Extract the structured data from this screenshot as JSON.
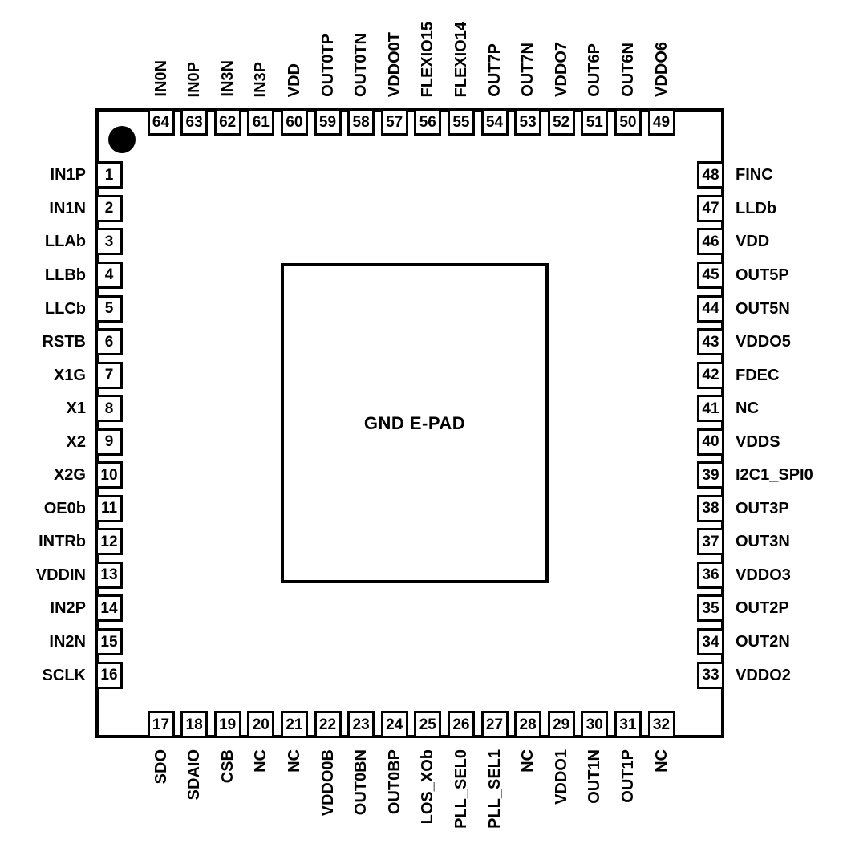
{
  "diagram": {
    "type": "ic-pinout",
    "package": "64-pin quad flat package",
    "epad_label": "GND E-PAD",
    "colors": {
      "line": "#000000",
      "text": "#000000",
      "background": "#ffffff"
    },
    "pins": {
      "top": [
        {
          "num": "64",
          "name": "IN0N"
        },
        {
          "num": "63",
          "name": "IN0P"
        },
        {
          "num": "62",
          "name": "IN3N"
        },
        {
          "num": "61",
          "name": "IN3P"
        },
        {
          "num": "60",
          "name": "VDD"
        },
        {
          "num": "59",
          "name": "OUT0TP"
        },
        {
          "num": "58",
          "name": "OUT0TN"
        },
        {
          "num": "57",
          "name": "VDDO0T"
        },
        {
          "num": "56",
          "name": "FLEXIO15"
        },
        {
          "num": "55",
          "name": "FLEXIO14"
        },
        {
          "num": "54",
          "name": "OUT7P"
        },
        {
          "num": "53",
          "name": "OUT7N"
        },
        {
          "num": "52",
          "name": "VDDO7"
        },
        {
          "num": "51",
          "name": "OUT6P"
        },
        {
          "num": "50",
          "name": "OUT6N"
        },
        {
          "num": "49",
          "name": "VDDO6"
        }
      ],
      "left": [
        {
          "num": "1",
          "name": "IN1P"
        },
        {
          "num": "2",
          "name": "IN1N"
        },
        {
          "num": "3",
          "name": "LLAb"
        },
        {
          "num": "4",
          "name": "LLBb"
        },
        {
          "num": "5",
          "name": "LLCb"
        },
        {
          "num": "6",
          "name": "RSTB"
        },
        {
          "num": "7",
          "name": "X1G"
        },
        {
          "num": "8",
          "name": "X1"
        },
        {
          "num": "9",
          "name": "X2"
        },
        {
          "num": "10",
          "name": "X2G"
        },
        {
          "num": "11",
          "name": "OE0b"
        },
        {
          "num": "12",
          "name": "INTRb"
        },
        {
          "num": "13",
          "name": "VDDIN"
        },
        {
          "num": "14",
          "name": "IN2P"
        },
        {
          "num": "15",
          "name": "IN2N"
        },
        {
          "num": "16",
          "name": "SCLK"
        }
      ],
      "right": [
        {
          "num": "48",
          "name": "FINC"
        },
        {
          "num": "47",
          "name": "LLDb"
        },
        {
          "num": "46",
          "name": "VDD"
        },
        {
          "num": "45",
          "name": "OUT5P"
        },
        {
          "num": "44",
          "name": "OUT5N"
        },
        {
          "num": "43",
          "name": "VDDO5"
        },
        {
          "num": "42",
          "name": "FDEC"
        },
        {
          "num": "41",
          "name": "NC"
        },
        {
          "num": "40",
          "name": "VDDS"
        },
        {
          "num": "39",
          "name": "I2C1_SPI0"
        },
        {
          "num": "38",
          "name": "OUT3P"
        },
        {
          "num": "37",
          "name": "OUT3N"
        },
        {
          "num": "36",
          "name": "VDDO3"
        },
        {
          "num": "35",
          "name": "OUT2P"
        },
        {
          "num": "34",
          "name": "OUT2N"
        },
        {
          "num": "33",
          "name": "VDDO2"
        }
      ],
      "bottom": [
        {
          "num": "17",
          "name": "SDO"
        },
        {
          "num": "18",
          "name": "SDAIO"
        },
        {
          "num": "19",
          "name": "CSB"
        },
        {
          "num": "20",
          "name": "NC"
        },
        {
          "num": "21",
          "name": "NC"
        },
        {
          "num": "22",
          "name": "VDDO0B"
        },
        {
          "num": "23",
          "name": "OUT0BN"
        },
        {
          "num": "24",
          "name": "OUT0BP"
        },
        {
          "num": "25",
          "name": "LOS_XOb"
        },
        {
          "num": "26",
          "name": "PLL_SEL0"
        },
        {
          "num": "27",
          "name": "PLL_SEL1"
        },
        {
          "num": "28",
          "name": "NC"
        },
        {
          "num": "29",
          "name": "VDDO1"
        },
        {
          "num": "30",
          "name": "OUT1N"
        },
        {
          "num": "31",
          "name": "OUT1P"
        },
        {
          "num": "32",
          "name": "NC"
        }
      ]
    }
  }
}
